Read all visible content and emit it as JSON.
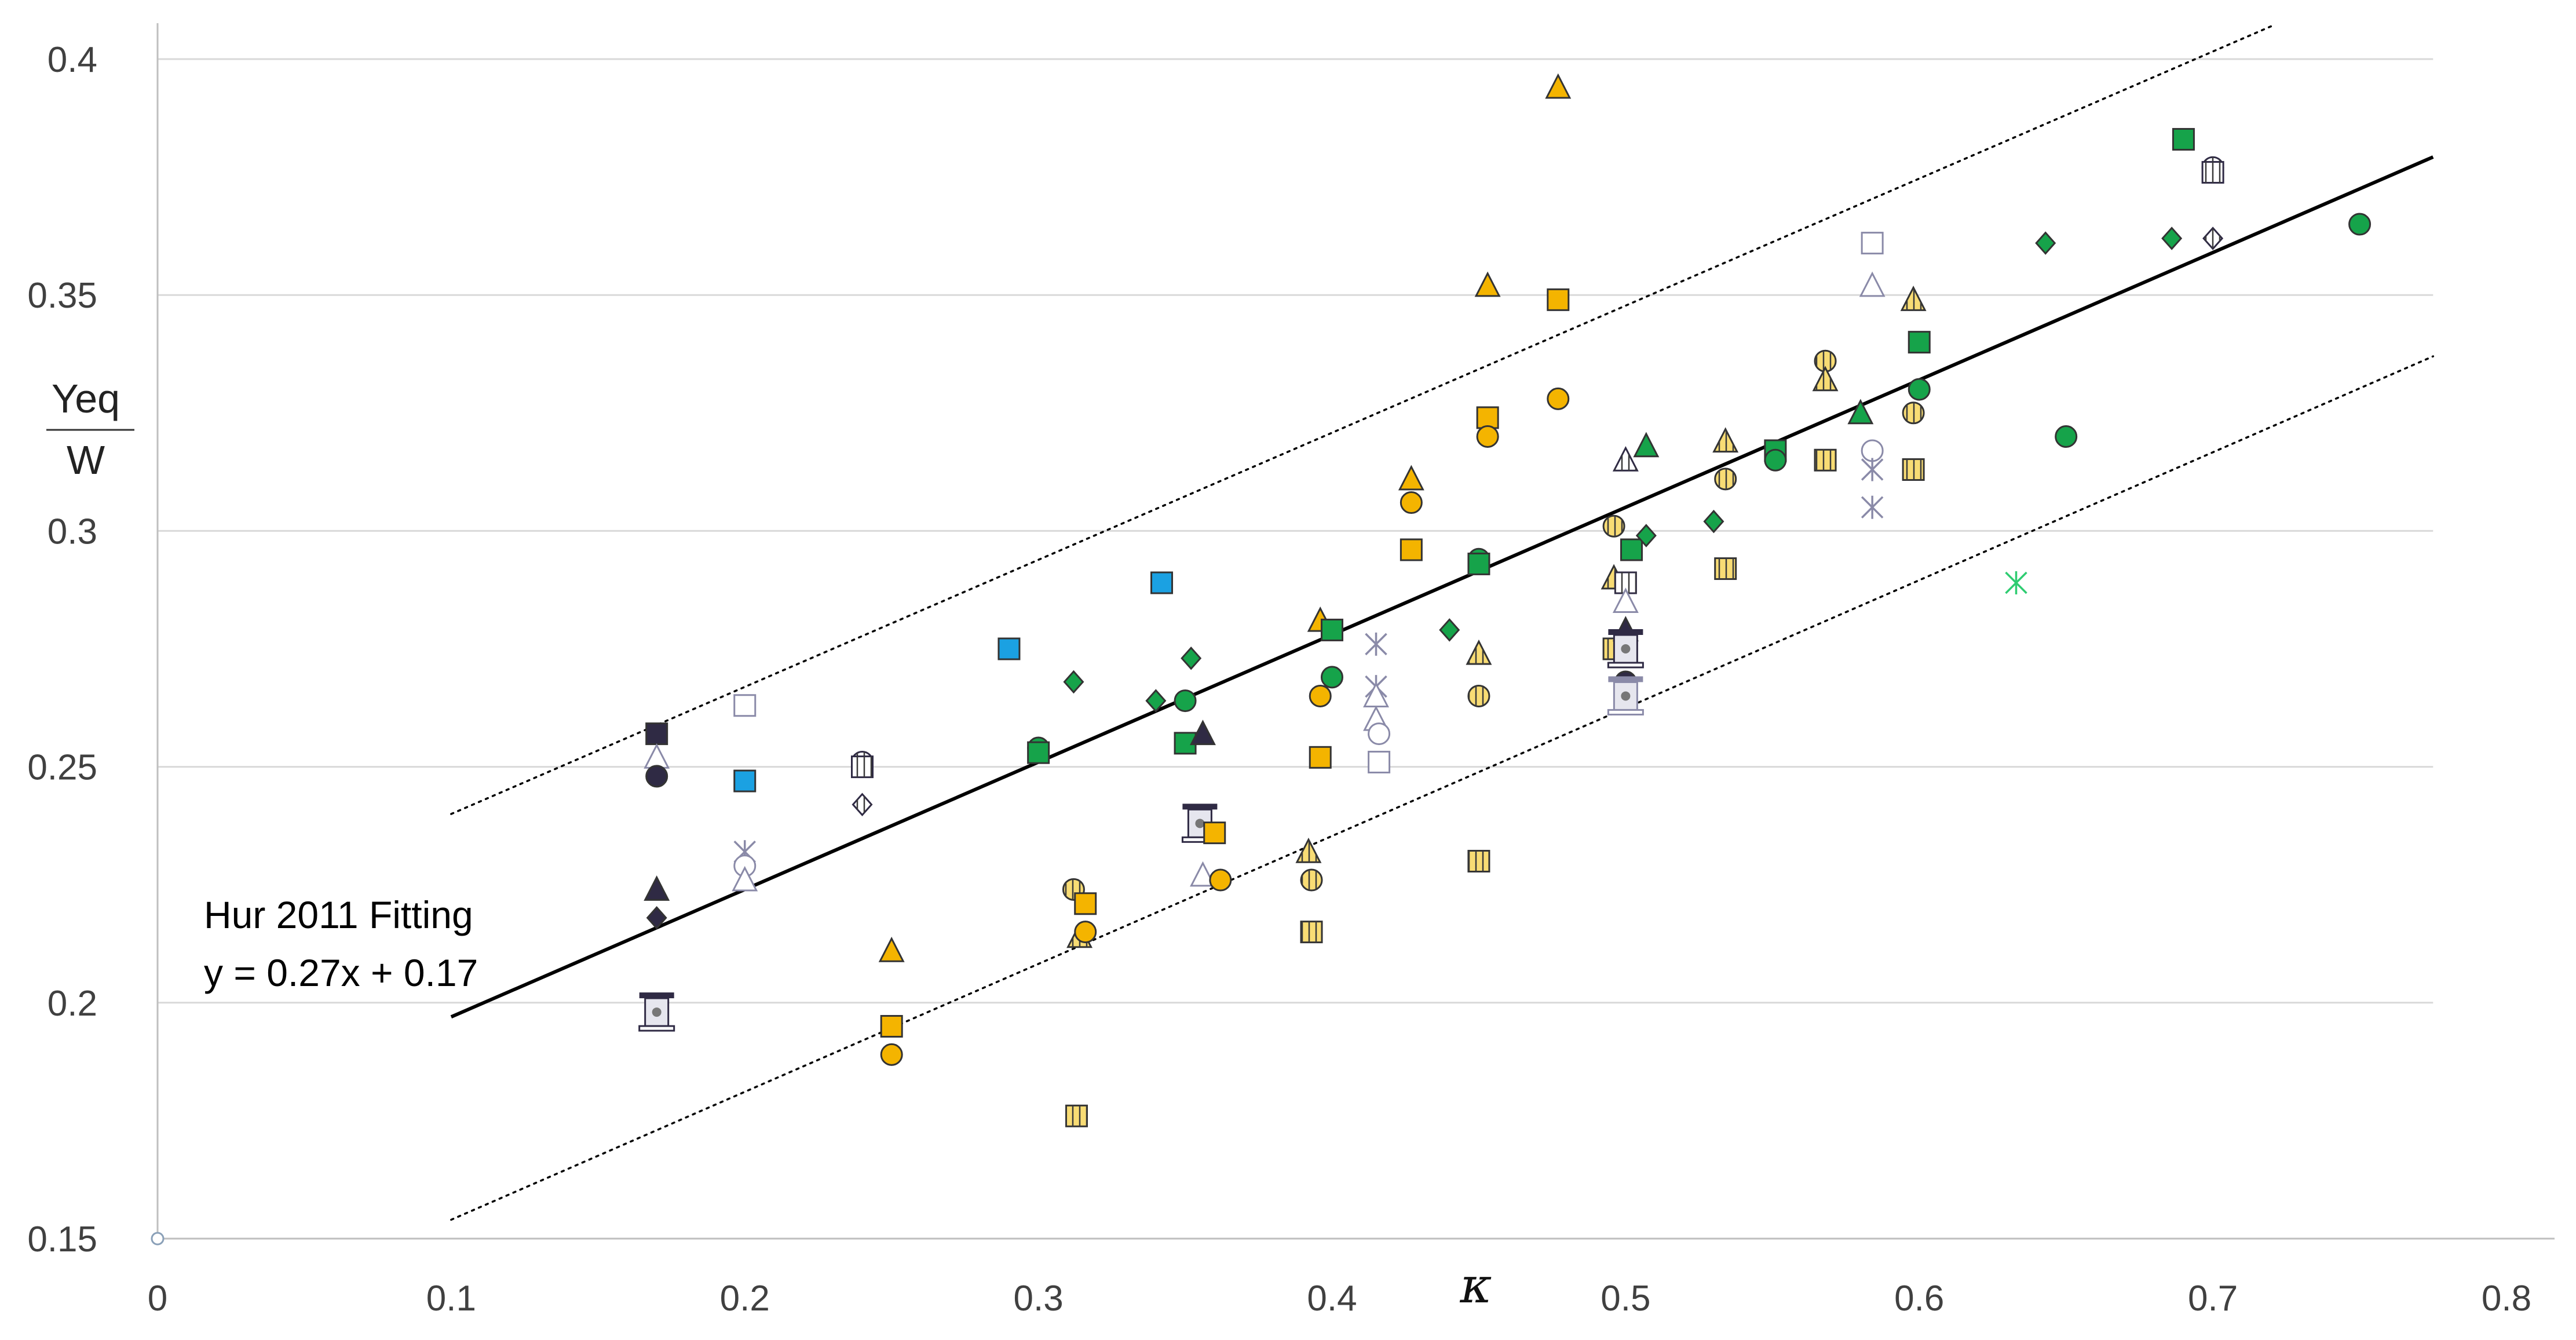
{
  "chart_data": {
    "type": "scatter",
    "title": "",
    "xlabel": "κ",
    "ylabel_num": "Yeq",
    "ylabel_den": "W",
    "xlim": [
      0,
      0.8
    ],
    "ylim": [
      0.15,
      0.4
    ],
    "x_ticks": [
      "0",
      "0.1",
      "0.2",
      "0.3",
      "0.4",
      "0.5",
      "0.6",
      "0.7",
      "0.8"
    ],
    "y_ticks": [
      "0.15",
      "0.2",
      "0.25",
      "0.3",
      "0.35",
      "0.4"
    ],
    "x_tick_values": [
      0,
      0.1,
      0.2,
      0.3,
      0.4,
      0.5,
      0.6,
      0.7,
      0.8
    ],
    "y_tick_values": [
      0.15,
      0.2,
      0.25,
      0.3,
      0.35,
      0.4
    ],
    "grid": "horizontal",
    "annotation": {
      "line1": "Hur 2011 Fitting",
      "line2": "y = 0.27x + 0.17"
    },
    "fit_line": {
      "slope": 0.27,
      "intercept": 0.17,
      "x_range": [
        0.1,
        0.775
      ]
    },
    "upper_bound": {
      "x": [
        0.1,
        0.72
      ],
      "y": [
        0.24,
        0.407
      ]
    },
    "lower_bound": {
      "x": [
        0.1,
        0.775
      ],
      "y": [
        0.154,
        0.337
      ]
    },
    "colors": {
      "green": "#16a34a",
      "yellow": "#f4b400",
      "lightyellow": "#f8dc74",
      "blue": "#1ba1e2",
      "navy": "#2f2a44",
      "gray": "#8a8aa8",
      "star_green": "#2ecc71"
    },
    "points": [
      {
        "x": 0.17,
        "y": 0.257,
        "shape": "square",
        "color": "navy"
      },
      {
        "x": 0.17,
        "y": 0.252,
        "shape": "triangle",
        "color": "gray",
        "fill": "none"
      },
      {
        "x": 0.17,
        "y": 0.248,
        "shape": "circle",
        "color": "navy"
      },
      {
        "x": 0.17,
        "y": 0.224,
        "shape": "triangle",
        "color": "navy"
      },
      {
        "x": 0.17,
        "y": 0.218,
        "shape": "diamond",
        "color": "navy"
      },
      {
        "x": 0.17,
        "y": 0.198,
        "shape": "hourglass",
        "color": "navy"
      },
      {
        "x": 0.2,
        "y": 0.263,
        "shape": "square",
        "color": "gray",
        "fill": "none"
      },
      {
        "x": 0.2,
        "y": 0.247,
        "shape": "square",
        "color": "blue"
      },
      {
        "x": 0.2,
        "y": 0.232,
        "shape": "star",
        "color": "gray"
      },
      {
        "x": 0.2,
        "y": 0.229,
        "shape": "circle",
        "color": "gray",
        "fill": "none"
      },
      {
        "x": 0.2,
        "y": 0.226,
        "shape": "triangle",
        "color": "gray",
        "fill": "none"
      },
      {
        "x": 0.24,
        "y": 0.251,
        "shape": "circle",
        "color": "navy",
        "fill": "none",
        "pattern": "vstripe"
      },
      {
        "x": 0.24,
        "y": 0.25,
        "shape": "square",
        "color": "navy",
        "fill": "none",
        "pattern": "vstripe"
      },
      {
        "x": 0.24,
        "y": 0.242,
        "shape": "diamond",
        "color": "navy",
        "fill": "none",
        "pattern": "vstripe"
      },
      {
        "x": 0.25,
        "y": 0.211,
        "shape": "triangle",
        "color": "yellow"
      },
      {
        "x": 0.25,
        "y": 0.195,
        "shape": "square",
        "color": "yellow"
      },
      {
        "x": 0.25,
        "y": 0.189,
        "shape": "circle",
        "color": "yellow"
      },
      {
        "x": 0.29,
        "y": 0.275,
        "shape": "square",
        "color": "blue"
      },
      {
        "x": 0.3,
        "y": 0.254,
        "shape": "circle",
        "color": "green"
      },
      {
        "x": 0.3,
        "y": 0.253,
        "shape": "square",
        "color": "green"
      },
      {
        "x": 0.312,
        "y": 0.268,
        "shape": "diamond",
        "color": "green"
      },
      {
        "x": 0.312,
        "y": 0.224,
        "shape": "circle",
        "color": "lightyellow",
        "pattern": "vstripe"
      },
      {
        "x": 0.314,
        "y": 0.214,
        "shape": "triangle",
        "color": "lightyellow",
        "pattern": "vstripe"
      },
      {
        "x": 0.316,
        "y": 0.221,
        "shape": "square",
        "color": "yellow"
      },
      {
        "x": 0.316,
        "y": 0.215,
        "shape": "circle",
        "color": "yellow"
      },
      {
        "x": 0.313,
        "y": 0.176,
        "shape": "square",
        "color": "lightyellow",
        "pattern": "vstripe"
      },
      {
        "x": 0.34,
        "y": 0.264,
        "shape": "diamond",
        "color": "green"
      },
      {
        "x": 0.342,
        "y": 0.289,
        "shape": "square",
        "color": "blue"
      },
      {
        "x": 0.35,
        "y": 0.264,
        "shape": "circle",
        "color": "green"
      },
      {
        "x": 0.35,
        "y": 0.255,
        "shape": "square",
        "color": "green"
      },
      {
        "x": 0.352,
        "y": 0.273,
        "shape": "diamond",
        "color": "green"
      },
      {
        "x": 0.356,
        "y": 0.257,
        "shape": "triangle",
        "color": "navy"
      },
      {
        "x": 0.356,
        "y": 0.227,
        "shape": "triangle",
        "color": "gray",
        "fill": "none"
      },
      {
        "x": 0.355,
        "y": 0.238,
        "shape": "hourglass",
        "color": "navy"
      },
      {
        "x": 0.36,
        "y": 0.236,
        "shape": "square",
        "color": "yellow"
      },
      {
        "x": 0.362,
        "y": 0.226,
        "shape": "circle",
        "color": "yellow"
      },
      {
        "x": 0.392,
        "y": 0.232,
        "shape": "triangle",
        "color": "lightyellow",
        "pattern": "vstripe"
      },
      {
        "x": 0.393,
        "y": 0.226,
        "shape": "circle",
        "color": "lightyellow",
        "pattern": "vstripe"
      },
      {
        "x": 0.393,
        "y": 0.215,
        "shape": "square",
        "color": "lightyellow",
        "pattern": "vstripe"
      },
      {
        "x": 0.396,
        "y": 0.281,
        "shape": "triangle",
        "color": "yellow"
      },
      {
        "x": 0.396,
        "y": 0.265,
        "shape": "circle",
        "color": "yellow"
      },
      {
        "x": 0.396,
        "y": 0.252,
        "shape": "square",
        "color": "yellow"
      },
      {
        "x": 0.4,
        "y": 0.279,
        "shape": "square",
        "color": "green"
      },
      {
        "x": 0.4,
        "y": 0.269,
        "shape": "circle",
        "color": "green"
      },
      {
        "x": 0.415,
        "y": 0.276,
        "shape": "star",
        "color": "gray"
      },
      {
        "x": 0.415,
        "y": 0.267,
        "shape": "star",
        "color": "gray"
      },
      {
        "x": 0.415,
        "y": 0.265,
        "shape": "triangle",
        "color": "gray",
        "fill": "none"
      },
      {
        "x": 0.415,
        "y": 0.26,
        "shape": "triangle",
        "color": "gray",
        "fill": "none"
      },
      {
        "x": 0.416,
        "y": 0.257,
        "shape": "circle",
        "color": "gray",
        "fill": "none"
      },
      {
        "x": 0.416,
        "y": 0.251,
        "shape": "square",
        "color": "gray",
        "fill": "none"
      },
      {
        "x": 0.427,
        "y": 0.311,
        "shape": "triangle",
        "color": "yellow"
      },
      {
        "x": 0.427,
        "y": 0.306,
        "shape": "circle",
        "color": "yellow"
      },
      {
        "x": 0.427,
        "y": 0.296,
        "shape": "square",
        "color": "yellow"
      },
      {
        "x": 0.44,
        "y": 0.279,
        "shape": "diamond",
        "color": "green"
      },
      {
        "x": 0.45,
        "y": 0.294,
        "shape": "circle",
        "color": "green"
      },
      {
        "x": 0.45,
        "y": 0.293,
        "shape": "square",
        "color": "green"
      },
      {
        "x": 0.45,
        "y": 0.274,
        "shape": "triangle",
        "color": "lightyellow",
        "pattern": "vstripe"
      },
      {
        "x": 0.45,
        "y": 0.265,
        "shape": "circle",
        "color": "lightyellow",
        "pattern": "vstripe"
      },
      {
        "x": 0.45,
        "y": 0.23,
        "shape": "square",
        "color": "lightyellow",
        "pattern": "vstripe"
      },
      {
        "x": 0.453,
        "y": 0.352,
        "shape": "triangle",
        "color": "yellow"
      },
      {
        "x": 0.453,
        "y": 0.324,
        "shape": "square",
        "color": "yellow"
      },
      {
        "x": 0.453,
        "y": 0.32,
        "shape": "circle",
        "color": "yellow"
      },
      {
        "x": 0.477,
        "y": 0.394,
        "shape": "triangle",
        "color": "yellow"
      },
      {
        "x": 0.477,
        "y": 0.349,
        "shape": "square",
        "color": "yellow"
      },
      {
        "x": 0.477,
        "y": 0.328,
        "shape": "circle",
        "color": "yellow"
      },
      {
        "x": 0.496,
        "y": 0.301,
        "shape": "circle",
        "color": "lightyellow",
        "pattern": "vstripe"
      },
      {
        "x": 0.496,
        "y": 0.29,
        "shape": "triangle",
        "color": "lightyellow",
        "pattern": "vstripe"
      },
      {
        "x": 0.496,
        "y": 0.275,
        "shape": "square",
        "color": "lightyellow",
        "pattern": "vstripe"
      },
      {
        "x": 0.5,
        "y": 0.315,
        "shape": "triangle",
        "color": "navy",
        "fill": "none",
        "pattern": "vstripe"
      },
      {
        "x": 0.5,
        "y": 0.289,
        "shape": "square",
        "color": "navy",
        "fill": "none",
        "pattern": "vstripe"
      },
      {
        "x": 0.5,
        "y": 0.285,
        "shape": "triangle",
        "color": "gray",
        "fill": "none"
      },
      {
        "x": 0.5,
        "y": 0.279,
        "shape": "triangle",
        "color": "navy"
      },
      {
        "x": 0.5,
        "y": 0.275,
        "shape": "hourglass",
        "color": "navy"
      },
      {
        "x": 0.5,
        "y": 0.268,
        "shape": "circle",
        "color": "navy"
      },
      {
        "x": 0.5,
        "y": 0.265,
        "shape": "hourglass",
        "color": "gray"
      },
      {
        "x": 0.502,
        "y": 0.296,
        "shape": "square",
        "color": "green"
      },
      {
        "x": 0.507,
        "y": 0.318,
        "shape": "triangle",
        "color": "green"
      },
      {
        "x": 0.507,
        "y": 0.299,
        "shape": "diamond",
        "color": "green"
      },
      {
        "x": 0.53,
        "y": 0.302,
        "shape": "diamond",
        "color": "green"
      },
      {
        "x": 0.534,
        "y": 0.319,
        "shape": "triangle",
        "color": "lightyellow",
        "pattern": "vstripe"
      },
      {
        "x": 0.534,
        "y": 0.311,
        "shape": "circle",
        "color": "lightyellow",
        "pattern": "vstripe"
      },
      {
        "x": 0.534,
        "y": 0.292,
        "shape": "square",
        "color": "lightyellow",
        "pattern": "vstripe"
      },
      {
        "x": 0.551,
        "y": 0.317,
        "shape": "square",
        "color": "green"
      },
      {
        "x": 0.551,
        "y": 0.315,
        "shape": "circle",
        "color": "green"
      },
      {
        "x": 0.568,
        "y": 0.336,
        "shape": "circle",
        "color": "lightyellow",
        "pattern": "vstripe"
      },
      {
        "x": 0.568,
        "y": 0.332,
        "shape": "triangle",
        "color": "lightyellow",
        "pattern": "vstripe"
      },
      {
        "x": 0.568,
        "y": 0.315,
        "shape": "square",
        "color": "lightyellow",
        "pattern": "vstripe"
      },
      {
        "x": 0.58,
        "y": 0.325,
        "shape": "triangle",
        "color": "green"
      },
      {
        "x": 0.584,
        "y": 0.361,
        "shape": "square",
        "color": "gray",
        "fill": "none"
      },
      {
        "x": 0.584,
        "y": 0.352,
        "shape": "triangle",
        "color": "gray",
        "fill": "none"
      },
      {
        "x": 0.584,
        "y": 0.317,
        "shape": "circle",
        "color": "gray",
        "fill": "none"
      },
      {
        "x": 0.584,
        "y": 0.313,
        "shape": "star",
        "color": "gray"
      },
      {
        "x": 0.584,
        "y": 0.305,
        "shape": "star",
        "color": "gray"
      },
      {
        "x": 0.598,
        "y": 0.349,
        "shape": "triangle",
        "color": "lightyellow",
        "pattern": "vstripe"
      },
      {
        "x": 0.598,
        "y": 0.325,
        "shape": "circle",
        "color": "lightyellow",
        "pattern": "vstripe"
      },
      {
        "x": 0.598,
        "y": 0.313,
        "shape": "square",
        "color": "lightyellow",
        "pattern": "vstripe"
      },
      {
        "x": 0.6,
        "y": 0.34,
        "shape": "square",
        "color": "green"
      },
      {
        "x": 0.6,
        "y": 0.33,
        "shape": "circle",
        "color": "green"
      },
      {
        "x": 0.633,
        "y": 0.289,
        "shape": "star",
        "color": "star_green"
      },
      {
        "x": 0.643,
        "y": 0.361,
        "shape": "diamond",
        "color": "green"
      },
      {
        "x": 0.65,
        "y": 0.32,
        "shape": "circle",
        "color": "green"
      },
      {
        "x": 0.686,
        "y": 0.362,
        "shape": "diamond",
        "color": "green"
      },
      {
        "x": 0.69,
        "y": 0.383,
        "shape": "square",
        "color": "green"
      },
      {
        "x": 0.7,
        "y": 0.377,
        "shape": "circle",
        "color": "navy",
        "fill": "none",
        "pattern": "vstripe"
      },
      {
        "x": 0.7,
        "y": 0.376,
        "shape": "square",
        "color": "navy",
        "fill": "none",
        "pattern": "vstripe"
      },
      {
        "x": 0.7,
        "y": 0.362,
        "shape": "diamond",
        "color": "navy",
        "fill": "none",
        "pattern": "vstripe"
      },
      {
        "x": 0.75,
        "y": 0.365,
        "shape": "circle",
        "color": "green"
      }
    ]
  }
}
